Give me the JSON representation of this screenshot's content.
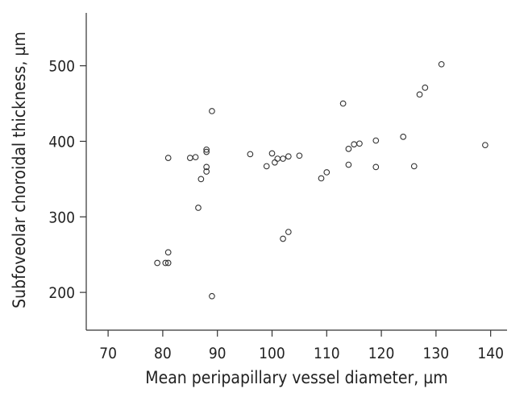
{
  "chart_data": {
    "type": "scatter",
    "title": "",
    "xlabel": "Mean peripapillary vessel diameter, µm",
    "ylabel": "Subfoveolar choroidal thickness, µm",
    "xlim": [
      66,
      143
    ],
    "ylim": [
      150,
      570
    ],
    "x_ticks": [
      70,
      80,
      90,
      100,
      110,
      120,
      130,
      140
    ],
    "y_ticks": [
      200,
      300,
      400,
      500
    ],
    "grid": false,
    "colors": {
      "marker": "#333333",
      "axis": "#333333"
    },
    "points": [
      {
        "x": 79,
        "y": 239
      },
      {
        "x": 80.5,
        "y": 239
      },
      {
        "x": 81,
        "y": 239
      },
      {
        "x": 81,
        "y": 253
      },
      {
        "x": 81,
        "y": 378
      },
      {
        "x": 85,
        "y": 378
      },
      {
        "x": 86,
        "y": 379
      },
      {
        "x": 86.5,
        "y": 312
      },
      {
        "x": 87,
        "y": 350
      },
      {
        "x": 88,
        "y": 360
      },
      {
        "x": 88,
        "y": 366
      },
      {
        "x": 88,
        "y": 386
      },
      {
        "x": 88,
        "y": 389
      },
      {
        "x": 89,
        "y": 440
      },
      {
        "x": 89,
        "y": 195
      },
      {
        "x": 96,
        "y": 383
      },
      {
        "x": 99,
        "y": 367
      },
      {
        "x": 100,
        "y": 384
      },
      {
        "x": 100.5,
        "y": 372
      },
      {
        "x": 101,
        "y": 377
      },
      {
        "x": 102,
        "y": 377
      },
      {
        "x": 102,
        "y": 271
      },
      {
        "x": 103,
        "y": 380
      },
      {
        "x": 103,
        "y": 280
      },
      {
        "x": 105,
        "y": 381
      },
      {
        "x": 109,
        "y": 351
      },
      {
        "x": 110,
        "y": 359
      },
      {
        "x": 113,
        "y": 450
      },
      {
        "x": 114,
        "y": 369
      },
      {
        "x": 114,
        "y": 390
      },
      {
        "x": 115,
        "y": 396
      },
      {
        "x": 116,
        "y": 397
      },
      {
        "x": 119,
        "y": 366
      },
      {
        "x": 119,
        "y": 401
      },
      {
        "x": 124,
        "y": 406
      },
      {
        "x": 126,
        "y": 367
      },
      {
        "x": 127,
        "y": 462
      },
      {
        "x": 128,
        "y": 471
      },
      {
        "x": 131,
        "y": 502
      },
      {
        "x": 139,
        "y": 395
      }
    ]
  }
}
